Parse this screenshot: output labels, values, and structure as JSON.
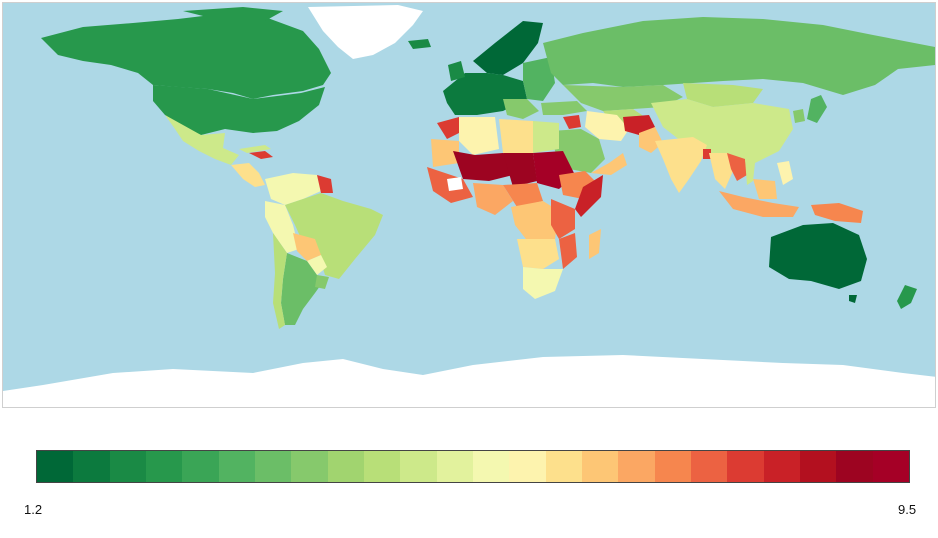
{
  "map": {
    "ocean_color": "#add8e6",
    "land_color_nodata": "#ffffff",
    "scale": {
      "min_label": "1.2",
      "max_label": "9.5",
      "min": 1.2,
      "max": 9.5,
      "colors": [
        "#006837",
        "#0c7a3e",
        "#1a8a45",
        "#27984c",
        "#3aa556",
        "#52b361",
        "#6bbe67",
        "#86c96c",
        "#a1d46f",
        "#b8df78",
        "#cde98a",
        "#e2f29d",
        "#f4f8b0",
        "#fdf3ae",
        "#fde08c",
        "#fdc675",
        "#fba763",
        "#f6864e",
        "#ec6242",
        "#dc3b32",
        "#c92127",
        "#b3101f",
        "#9d0421",
        "#a50026"
      ]
    }
  }
}
